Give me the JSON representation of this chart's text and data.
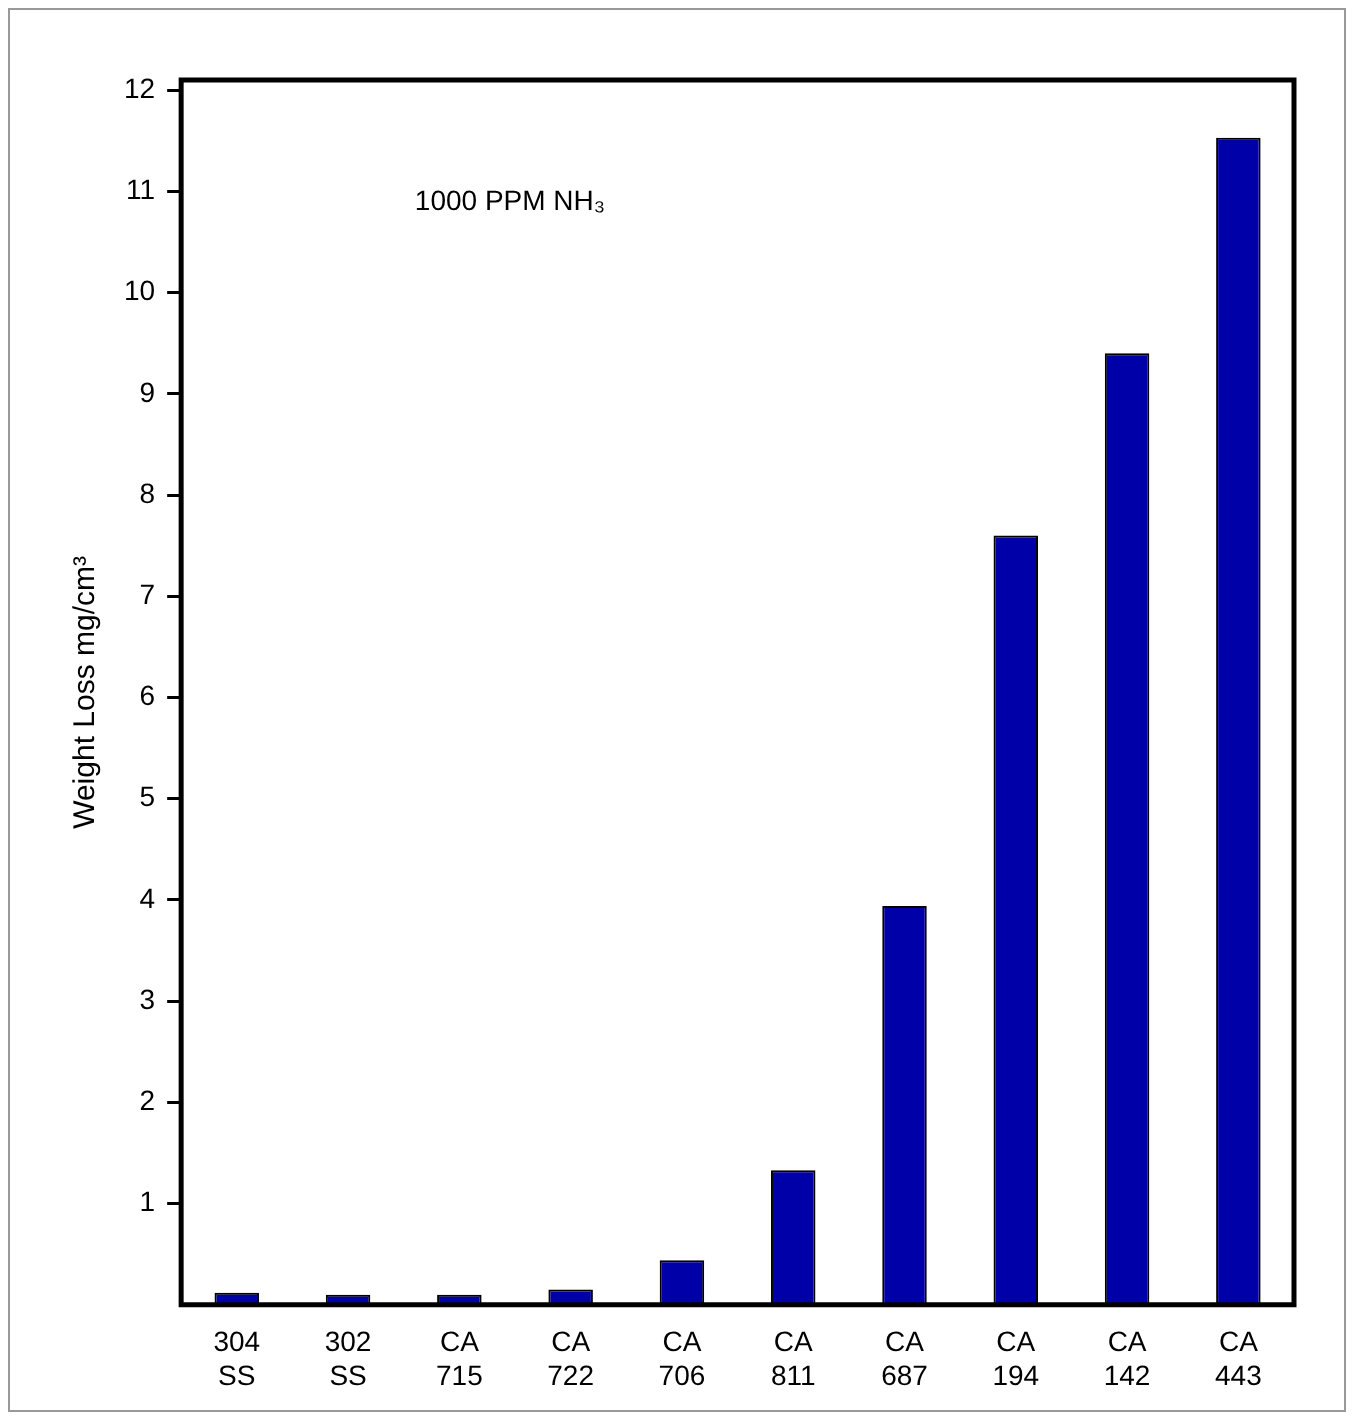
{
  "chart_data": {
    "type": "bar",
    "ylabel": "Weight Loss mg/cm³",
    "annotations": [
      "1000 PPM NH₃"
    ],
    "categories": [
      "304 SS",
      "302 SS",
      "CA 715",
      "CA 722",
      "CA 706",
      "CA 811",
      "CA 687",
      "CA 194",
      "CA 142",
      "CA 443"
    ],
    "values": [
      0.12,
      0.1,
      0.1,
      0.15,
      0.44,
      1.33,
      3.94,
      7.6,
      9.4,
      11.53
    ],
    "color": "#0000a8",
    "ylim": [
      0,
      12.1
    ],
    "yticks": [
      1,
      2,
      3,
      4,
      5,
      6,
      7,
      8,
      9,
      10,
      11,
      12
    ],
    "grid": false,
    "legend": false
  }
}
